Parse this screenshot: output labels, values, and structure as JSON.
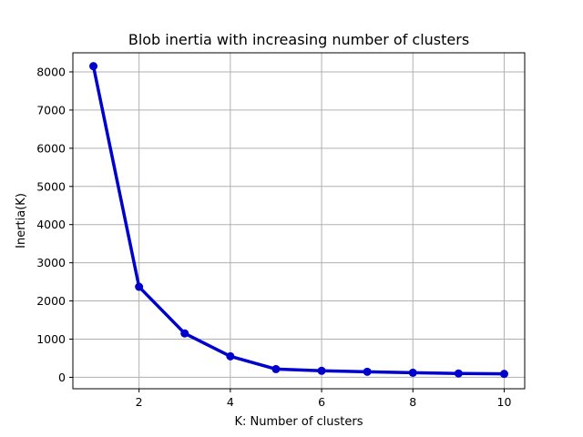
{
  "chart_data": {
    "type": "line",
    "title": "Blob inertia with increasing number of clusters",
    "xlabel": "K: Number of clusters",
    "ylabel": "Inertia(K)",
    "x": [
      1,
      2,
      3,
      4,
      5,
      6,
      7,
      8,
      9,
      10
    ],
    "series": [
      {
        "values": [
          8150,
          2370,
          1150,
          550,
          215,
          170,
          145,
          120,
          100,
          90
        ],
        "color": "#0000cc",
        "marker": "circle"
      }
    ],
    "xlim": [
      0.55,
      10.45
    ],
    "ylim": [
      -300,
      8500
    ],
    "xticks": [
      2,
      4,
      6,
      8,
      10
    ],
    "yticks": [
      0,
      1000,
      2000,
      3000,
      4000,
      5000,
      6000,
      7000,
      8000
    ],
    "grid": true,
    "legend": false
  }
}
